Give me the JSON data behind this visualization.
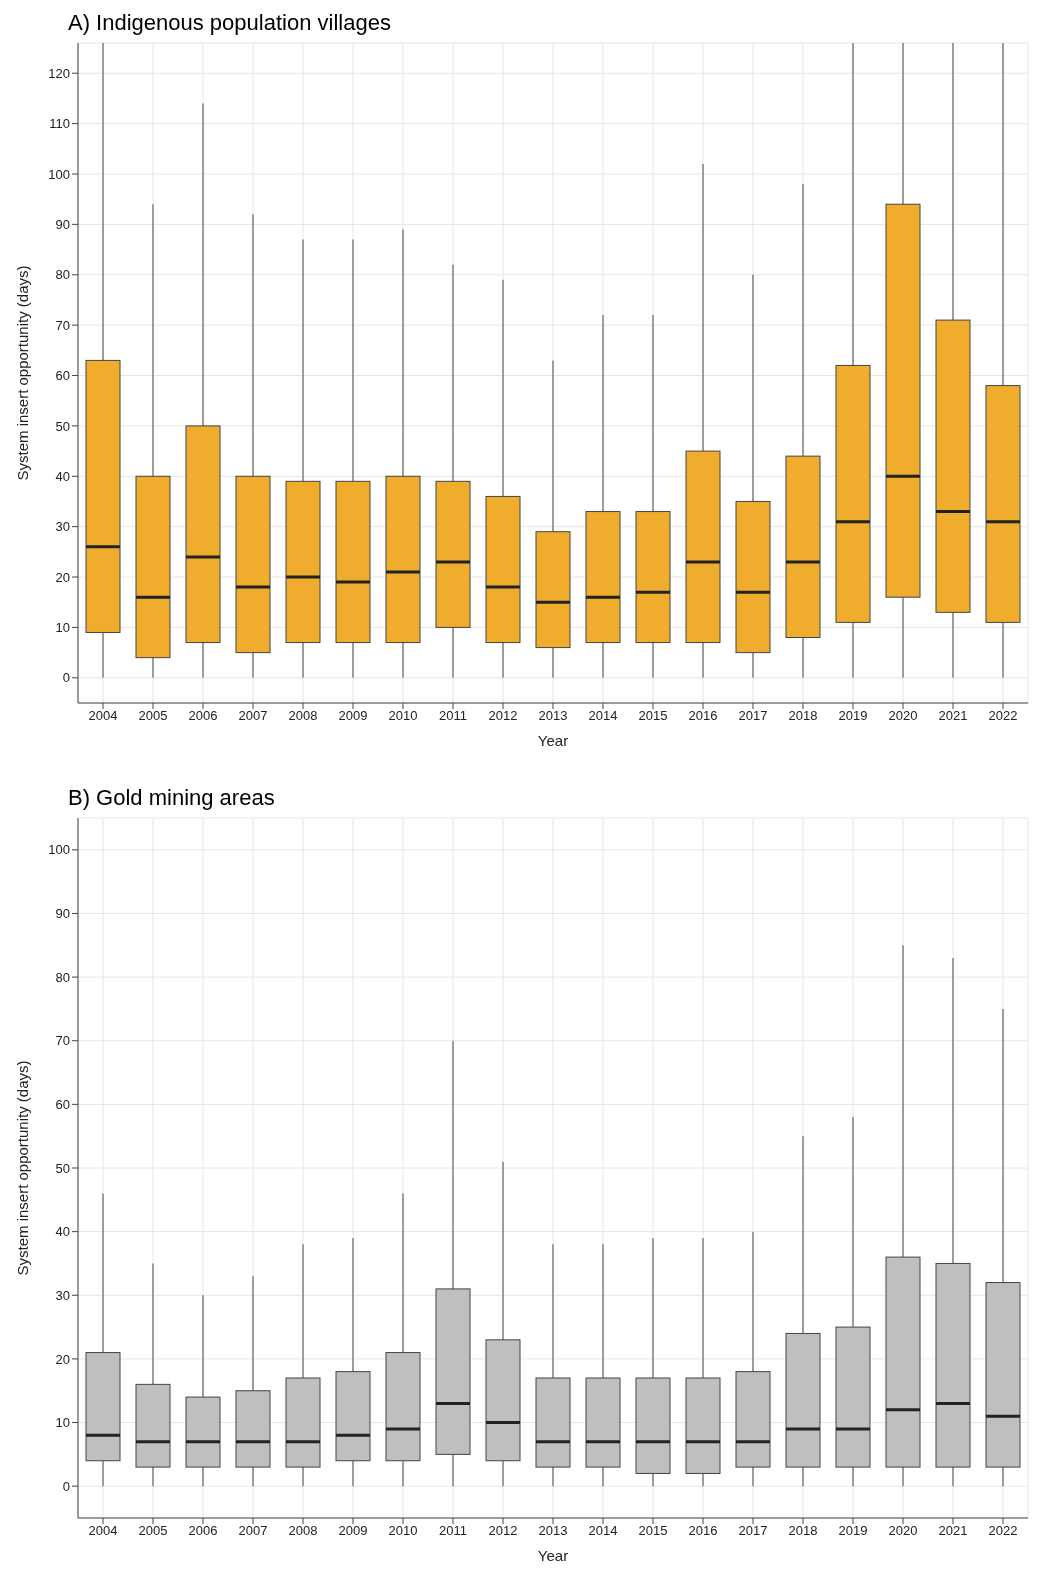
{
  "chart_data": [
    {
      "type": "box",
      "title": "A) Indigenous population villages",
      "xlabel": "Year",
      "ylabel": "System insert opportunity (days)",
      "categories": [
        "2004",
        "2005",
        "2006",
        "2007",
        "2008",
        "2009",
        "2010",
        "2011",
        "2012",
        "2013",
        "2014",
        "2015",
        "2016",
        "2017",
        "2018",
        "2019",
        "2020",
        "2021",
        "2022"
      ],
      "color": "#f0ad2d",
      "ylim": [
        -5,
        126
      ],
      "yticks": [
        0,
        10,
        20,
        30,
        40,
        50,
        60,
        70,
        80,
        90,
        100,
        110,
        120
      ],
      "grid": true,
      "boxes": [
        {
          "low": 0,
          "q1": 9,
          "median": 26,
          "q3": 63,
          "high": 126
        },
        {
          "low": 0,
          "q1": 4,
          "median": 16,
          "q3": 40,
          "high": 94
        },
        {
          "low": 0,
          "q1": 7,
          "median": 24,
          "q3": 50,
          "high": 114
        },
        {
          "low": 0,
          "q1": 5,
          "median": 18,
          "q3": 40,
          "high": 92
        },
        {
          "low": 0,
          "q1": 7,
          "median": 20,
          "q3": 39,
          "high": 87
        },
        {
          "low": 0,
          "q1": 7,
          "median": 19,
          "q3": 39,
          "high": 87
        },
        {
          "low": 0,
          "q1": 7,
          "median": 21,
          "q3": 40,
          "high": 89
        },
        {
          "low": 0,
          "q1": 10,
          "median": 23,
          "q3": 39,
          "high": 82
        },
        {
          "low": 0,
          "q1": 7,
          "median": 18,
          "q3": 36,
          "high": 79
        },
        {
          "low": 0,
          "q1": 6,
          "median": 15,
          "q3": 29,
          "high": 63
        },
        {
          "low": 0,
          "q1": 7,
          "median": 16,
          "q3": 33,
          "high": 72
        },
        {
          "low": 0,
          "q1": 7,
          "median": 17,
          "q3": 33,
          "high": 72
        },
        {
          "low": 0,
          "q1": 7,
          "median": 23,
          "q3": 45,
          "high": 102
        },
        {
          "low": 0,
          "q1": 5,
          "median": 17,
          "q3": 35,
          "high": 80
        },
        {
          "low": 0,
          "q1": 8,
          "median": 23,
          "q3": 44,
          "high": 98
        },
        {
          "low": 0,
          "q1": 11,
          "median": 31,
          "q3": 62,
          "high": 126
        },
        {
          "low": 0,
          "q1": 16,
          "median": 40,
          "q3": 94,
          "high": 126
        },
        {
          "low": 0,
          "q1": 13,
          "median": 33,
          "q3": 71,
          "high": 126
        },
        {
          "low": 0,
          "q1": 11,
          "median": 31,
          "q3": 58,
          "high": 126
        }
      ]
    },
    {
      "type": "box",
      "title": "B) Gold mining areas",
      "xlabel": "Year",
      "ylabel": "System insert opportunity (days)",
      "categories": [
        "2004",
        "2005",
        "2006",
        "2007",
        "2008",
        "2009",
        "2010",
        "2011",
        "2012",
        "2013",
        "2014",
        "2015",
        "2016",
        "2017",
        "2018",
        "2019",
        "2020",
        "2021",
        "2022"
      ],
      "color": "#bfbfbf",
      "ylim": [
        -5,
        105
      ],
      "yticks": [
        0,
        10,
        20,
        30,
        40,
        50,
        60,
        70,
        80,
        90,
        100
      ],
      "grid": true,
      "boxes": [
        {
          "low": 0,
          "q1": 4,
          "median": 8,
          "q3": 21,
          "high": 46
        },
        {
          "low": 0,
          "q1": 3,
          "median": 7,
          "q3": 16,
          "high": 35
        },
        {
          "low": 0,
          "q1": 3,
          "median": 7,
          "q3": 14,
          "high": 30
        },
        {
          "low": 0,
          "q1": 3,
          "median": 7,
          "q3": 15,
          "high": 33
        },
        {
          "low": 0,
          "q1": 3,
          "median": 7,
          "q3": 17,
          "high": 38
        },
        {
          "low": 0,
          "q1": 4,
          "median": 8,
          "q3": 18,
          "high": 39
        },
        {
          "low": 0,
          "q1": 4,
          "median": 9,
          "q3": 21,
          "high": 46
        },
        {
          "low": 0,
          "q1": 5,
          "median": 13,
          "q3": 31,
          "high": 70
        },
        {
          "low": 0,
          "q1": 4,
          "median": 10,
          "q3": 23,
          "high": 51
        },
        {
          "low": 0,
          "q1": 3,
          "median": 7,
          "q3": 17,
          "high": 38
        },
        {
          "low": 0,
          "q1": 3,
          "median": 7,
          "q3": 17,
          "high": 38
        },
        {
          "low": 0,
          "q1": 2,
          "median": 7,
          "q3": 17,
          "high": 39
        },
        {
          "low": 0,
          "q1": 2,
          "median": 7,
          "q3": 17,
          "high": 39
        },
        {
          "low": 0,
          "q1": 3,
          "median": 7,
          "q3": 18,
          "high": 40
        },
        {
          "low": 0,
          "q1": 3,
          "median": 9,
          "q3": 24,
          "high": 55
        },
        {
          "low": 0,
          "q1": 3,
          "median": 9,
          "q3": 25,
          "high": 58
        },
        {
          "low": 0,
          "q1": 3,
          "median": 12,
          "q3": 36,
          "high": 85
        },
        {
          "low": 0,
          "q1": 3,
          "median": 13,
          "q3": 35,
          "high": 83
        },
        {
          "low": 0,
          "q1": 3,
          "median": 11,
          "q3": 32,
          "high": 75
        }
      ]
    }
  ]
}
